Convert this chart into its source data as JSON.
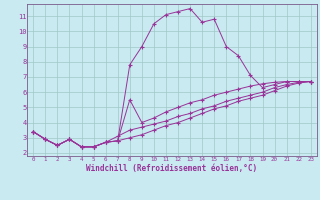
{
  "title": "",
  "xlabel": "Windchill (Refroidissement éolien,°C)",
  "bg_color": "#c8eaf0",
  "grid_color": "#a0c8c8",
  "line_color": "#993399",
  "spine_color": "#7a5a8a",
  "xlim": [
    -0.5,
    23.5
  ],
  "ylim": [
    1.8,
    11.8
  ],
  "xticks": [
    0,
    1,
    2,
    3,
    4,
    5,
    6,
    7,
    8,
    9,
    10,
    11,
    12,
    13,
    14,
    15,
    16,
    17,
    18,
    19,
    20,
    21,
    22,
    23
  ],
  "yticks": [
    2,
    3,
    4,
    5,
    6,
    7,
    8,
    9,
    10,
    11
  ],
  "curve1_x": [
    0,
    1,
    2,
    3,
    4,
    5,
    6,
    7,
    8,
    9,
    10,
    11,
    12,
    13,
    14,
    15,
    16,
    17,
    18,
    19,
    20,
    21,
    22,
    23
  ],
  "curve1_y": [
    3.4,
    2.9,
    2.5,
    2.9,
    2.4,
    2.4,
    2.7,
    2.8,
    7.8,
    9.0,
    10.5,
    11.1,
    11.3,
    11.5,
    10.6,
    10.8,
    9.0,
    8.4,
    7.1,
    6.3,
    6.5,
    6.7,
    6.7,
    6.7
  ],
  "curve2_x": [
    0,
    1,
    2,
    3,
    4,
    5,
    6,
    7,
    8,
    9,
    10,
    11,
    12,
    13,
    14,
    15,
    16,
    17,
    18,
    19,
    20,
    21,
    22,
    23
  ],
  "curve2_y": [
    3.4,
    2.9,
    2.5,
    2.9,
    2.4,
    2.4,
    2.7,
    2.8,
    5.5,
    4.0,
    4.3,
    4.7,
    5.0,
    5.3,
    5.5,
    5.8,
    6.0,
    6.2,
    6.4,
    6.55,
    6.65,
    6.7,
    6.7,
    6.7
  ],
  "curve3_x": [
    0,
    1,
    2,
    3,
    4,
    5,
    6,
    7,
    8,
    9,
    10,
    11,
    12,
    13,
    14,
    15,
    16,
    17,
    18,
    19,
    20,
    21,
    22,
    23
  ],
  "curve3_y": [
    3.4,
    2.9,
    2.5,
    2.9,
    2.4,
    2.4,
    2.7,
    3.1,
    3.5,
    3.7,
    3.9,
    4.1,
    4.4,
    4.6,
    4.9,
    5.1,
    5.4,
    5.6,
    5.8,
    6.0,
    6.3,
    6.5,
    6.65,
    6.7
  ],
  "curve4_x": [
    0,
    1,
    2,
    3,
    4,
    5,
    6,
    7,
    8,
    9,
    10,
    11,
    12,
    13,
    14,
    15,
    16,
    17,
    18,
    19,
    20,
    21,
    22,
    23
  ],
  "curve4_y": [
    3.4,
    2.9,
    2.5,
    2.9,
    2.4,
    2.4,
    2.7,
    2.8,
    3.0,
    3.2,
    3.5,
    3.8,
    4.0,
    4.3,
    4.6,
    4.9,
    5.1,
    5.4,
    5.6,
    5.8,
    6.1,
    6.4,
    6.6,
    6.7
  ]
}
